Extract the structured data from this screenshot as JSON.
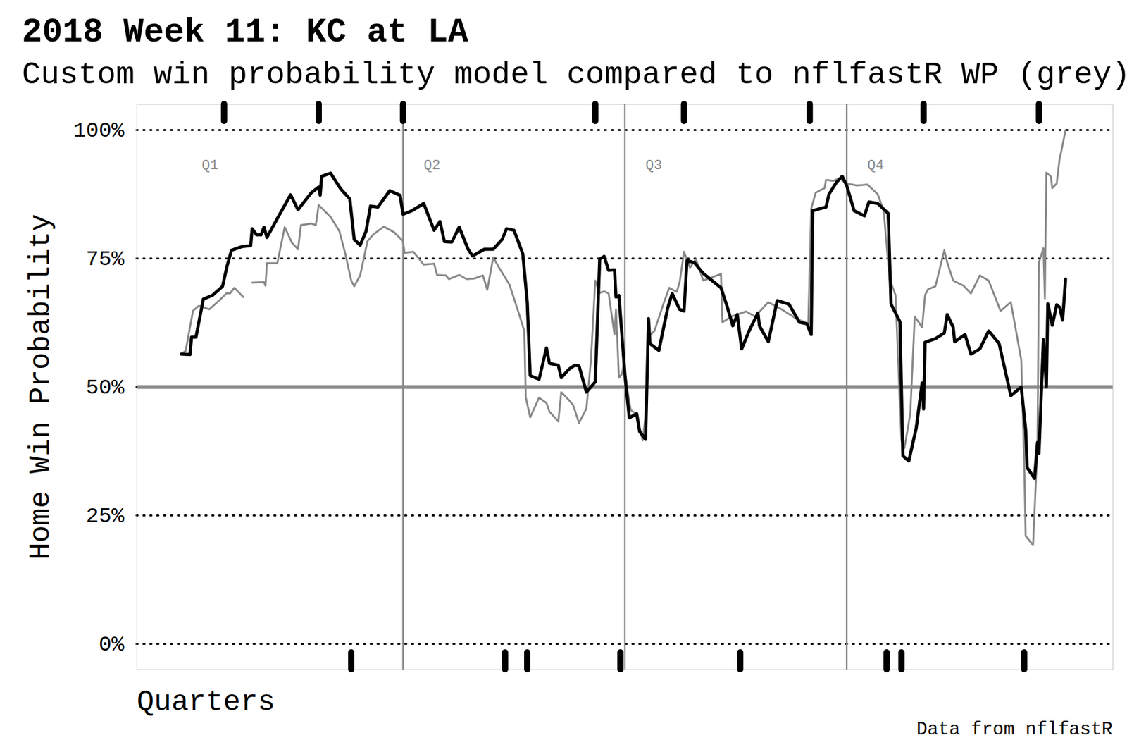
{
  "chart_data": {
    "type": "line",
    "title": "2018 Week 11: KC at LA",
    "subtitle": "Custom win probability model compared to nflfastR WP (grey)",
    "x_label": "Quarters",
    "y_label": "Home Win Probability",
    "caption": "Data from nflfastR",
    "xlim": [
      -3,
      63
    ],
    "ylim": [
      -5,
      105
    ],
    "yticks": [
      {
        "value": 0,
        "label": "0%"
      },
      {
        "value": 25,
        "label": "25%"
      },
      {
        "value": 50,
        "label": "50%"
      },
      {
        "value": 75,
        "label": "75%"
      },
      {
        "value": 100,
        "label": "100%"
      }
    ],
    "grid": true,
    "tick_labels": "y",
    "reference_line": 50,
    "quarter_lines": [
      15,
      30,
      45
    ],
    "quarters": [
      {
        "label": "Q1",
        "x": 0
      },
      {
        "label": "Q2",
        "x": 15
      },
      {
        "label": "Q3",
        "x": 30
      },
      {
        "label": "Q4",
        "x": 45
      }
    ],
    "home_scores": [
      2.9,
      9.3,
      15.0,
      28.0,
      34.0,
      42.5,
      50.2,
      58.0
    ],
    "away_scores": [
      11.5,
      21.9,
      23.4,
      29.7,
      37.8,
      47.7,
      48.7,
      57.0
    ],
    "series": [
      {
        "name": "nflfastR WP",
        "color": "#888888",
        "x": [
          0.0,
          0.3,
          0.8,
          1.2,
          1.9,
          2.6,
          3.1,
          3.3,
          3.6,
          4.2,
          4.5,
          4.8,
          5.6,
          5.7,
          5.8,
          6.5,
          7.0,
          7.5,
          7.9,
          8.1,
          8.8,
          9.1,
          9.3,
          10.1,
          10.7,
          11.1,
          11.5,
          11.7,
          12.1,
          12.6,
          13.0,
          13.7,
          14.4,
          15.0,
          15.1,
          15.7,
          16.4,
          17.1,
          17.3,
          17.9,
          18.1,
          18.8,
          19.3,
          19.8,
          20.4,
          20.7,
          21.1,
          21.5,
          22.2,
          22.9,
          23.2,
          23.3,
          23.6,
          24.2,
          24.7,
          24.9,
          25.5,
          25.7,
          26.2,
          26.5,
          26.9,
          27.4,
          27.7,
          28.0,
          28.3,
          28.6,
          28.9,
          29.3,
          29.4,
          29.6,
          29.8,
          29.9,
          30.4,
          30.8,
          31.2,
          31.4,
          31.6,
          32.0,
          32.6,
          33.0,
          33.5,
          33.7,
          34.0,
          34.4,
          34.8,
          35.3,
          36.5,
          36.6,
          37.2,
          38.2,
          38.8,
          39.7,
          40.6,
          41.6,
          42.4,
          42.6,
          42.9,
          43.5,
          43.6,
          44.1,
          44.5,
          45.0,
          45.7,
          46.4,
          47.1,
          47.5,
          47.9,
          48.3,
          48.7,
          48.9,
          49.3,
          49.6,
          50.1,
          50.3,
          50.5,
          51.0,
          51.6,
          51.8,
          52.2,
          52.9,
          53.4,
          54.0,
          54.6,
          55.4,
          56.1,
          56.8,
          57.0,
          57.1,
          57.6,
          57.9,
          58.0,
          58.3,
          58.4,
          58.5,
          58.8,
          58.9,
          59.2,
          59.4,
          59.5,
          59.8
        ],
        "values": [
          56.4,
          57.0,
          64.8,
          65.8,
          65.1,
          66.9,
          68.3,
          68.2,
          69.3,
          67.5,
          null,
          70.3,
          70.4,
          69.7,
          74.1,
          74.1,
          81.1,
          78.0,
          76.8,
          81.5,
          81.8,
          81.5,
          85.4,
          83.1,
          80.3,
          75.9,
          70.7,
          69.6,
          71.7,
          78.4,
          79.7,
          81.2,
          80.1,
          78.4,
          76.1,
          76.3,
          73.8,
          74.0,
          71.8,
          71.7,
          71.0,
          71.8,
          71.0,
          71.1,
          71.7,
          68.9,
          75.2,
          73.2,
          69.9,
          63.7,
          60.9,
          48.0,
          44.1,
          47.9,
          46.9,
          45.2,
          43.3,
          49.0,
          47.5,
          46.5,
          43.0,
          45.8,
          55.0,
          70.7,
          68.3,
          68.6,
          68.2,
          60.2,
          65.1,
          51.8,
          52.5,
          54.1,
          45.5,
          44.7,
          39.6,
          44.5,
          59.8,
          60.9,
          66.1,
          69.3,
          68.5,
          70.3,
          76.3,
          73.2,
          74.9,
          70.7,
          72.0,
          62.6,
          63.7,
          64.7,
          63.7,
          66.5,
          65.1,
          63.3,
          62.3,
          84.7,
          87.8,
          88.7,
          90.3,
          90.1,
          90.6,
          89.6,
          89.2,
          89.4,
          87.5,
          84.3,
          71.0,
          67.9,
          39.6,
          38.1,
          44.8,
          63.7,
          61.6,
          67.9,
          69.0,
          69.6,
          76.6,
          74.2,
          70.7,
          69.7,
          68.2,
          71.7,
          70.7,
          64.8,
          66.5,
          55.3,
          35.7,
          21.0,
          19.2,
          38.5,
          74.2,
          77.0,
          67.2,
          91.7,
          91.0,
          88.7,
          89.6,
          94.5,
          95.7,
          100.0
        ]
      },
      {
        "name": "Custom win probability model",
        "color": "#000000",
        "x": [
          0.0,
          0.6,
          0.7,
          1.0,
          1.5,
          2.1,
          2.8,
          3.1,
          3.4,
          4.1,
          4.7,
          4.8,
          5.1,
          5.4,
          5.6,
          5.8,
          6.6,
          7.4,
          7.9,
          8.8,
          9.3,
          9.4,
          9.5,
          10.1,
          10.8,
          11.4,
          11.7,
          12.1,
          12.5,
          12.8,
          13.3,
          14.1,
          14.8,
          15.0,
          15.6,
          16.4,
          17.1,
          17.5,
          17.8,
          18.3,
          18.8,
          19.4,
          19.7,
          20.5,
          21.1,
          21.7,
          22.0,
          22.5,
          23.1,
          23.4,
          23.6,
          24.2,
          24.7,
          24.9,
          25.5,
          25.7,
          26.2,
          26.6,
          26.9,
          27.4,
          28.0,
          28.3,
          28.6,
          28.9,
          29.3,
          29.4,
          29.6,
          30.0,
          30.3,
          30.8,
          31.0,
          31.4,
          31.6,
          31.7,
          32.3,
          32.9,
          33.2,
          33.7,
          34.0,
          34.2,
          34.7,
          35.3,
          36.5,
          36.9,
          37.3,
          37.6,
          37.9,
          38.4,
          39.0,
          39.1,
          39.7,
          40.3,
          41.1,
          41.8,
          42.3,
          42.6,
          42.7,
          43.2,
          43.6,
          43.8,
          44.3,
          44.7,
          45.0,
          45.5,
          46.2,
          46.5,
          47.1,
          47.8,
          48.0,
          48.3,
          48.6,
          48.8,
          49.2,
          49.7,
          50.1,
          50.2,
          50.3,
          51.0,
          51.6,
          51.8,
          52.2,
          52.3,
          53.0,
          53.4,
          54.0,
          54.6,
          55.3,
          56.1,
          56.8,
          57.1,
          57.2,
          57.7,
          57.9,
          58.0,
          58.3,
          58.5,
          58.6,
          58.9,
          59.2,
          59.4,
          59.6,
          59.8
        ],
        "values": [
          56.4,
          56.3,
          59.7,
          59.7,
          67.1,
          67.8,
          69.6,
          73.5,
          76.6,
          77.3,
          77.5,
          80.8,
          79.6,
          79.6,
          81.1,
          79.1,
          83.3,
          87.4,
          84.5,
          87.8,
          88.9,
          87.3,
          91.0,
          91.6,
          88.5,
          86.6,
          78.7,
          77.6,
          80.3,
          85.2,
          85.0,
          88.2,
          87.3,
          83.6,
          84.3,
          85.7,
          80.5,
          82.2,
          78.3,
          78.2,
          81.1,
          76.8,
          75.5,
          76.8,
          76.8,
          78.7,
          80.8,
          80.5,
          75.9,
          66.5,
          52.2,
          51.5,
          57.6,
          54.6,
          54.2,
          51.8,
          53.4,
          54.2,
          54.1,
          49.0,
          51.0,
          74.9,
          75.4,
          72.7,
          72.8,
          67.5,
          67.8,
          52.5,
          44.0,
          44.8,
          41.3,
          39.8,
          63.3,
          58.4,
          57.1,
          65.4,
          68.2,
          65.1,
          64.8,
          74.6,
          74.2,
          72.1,
          69.3,
          65.8,
          61.9,
          64.1,
          57.4,
          60.9,
          64.4,
          61.9,
          58.8,
          66.8,
          66.1,
          62.6,
          62.3,
          60.2,
          84.3,
          84.7,
          85.0,
          87.5,
          89.8,
          91.0,
          89.2,
          84.3,
          83.3,
          86.0,
          85.7,
          83.8,
          66.1,
          64.4,
          62.7,
          36.6,
          35.6,
          42.0,
          50.8,
          45.7,
          58.7,
          59.4,
          60.5,
          64.1,
          61.6,
          58.8,
          60.2,
          56.4,
          57.4,
          60.9,
          58.5,
          48.3,
          50.0,
          41.7,
          34.3,
          32.2,
          39.2,
          37.1,
          59.2,
          50.0,
          66.2,
          62.0,
          66.0,
          65.5,
          63.0,
          71.0
        ]
      }
    ]
  }
}
